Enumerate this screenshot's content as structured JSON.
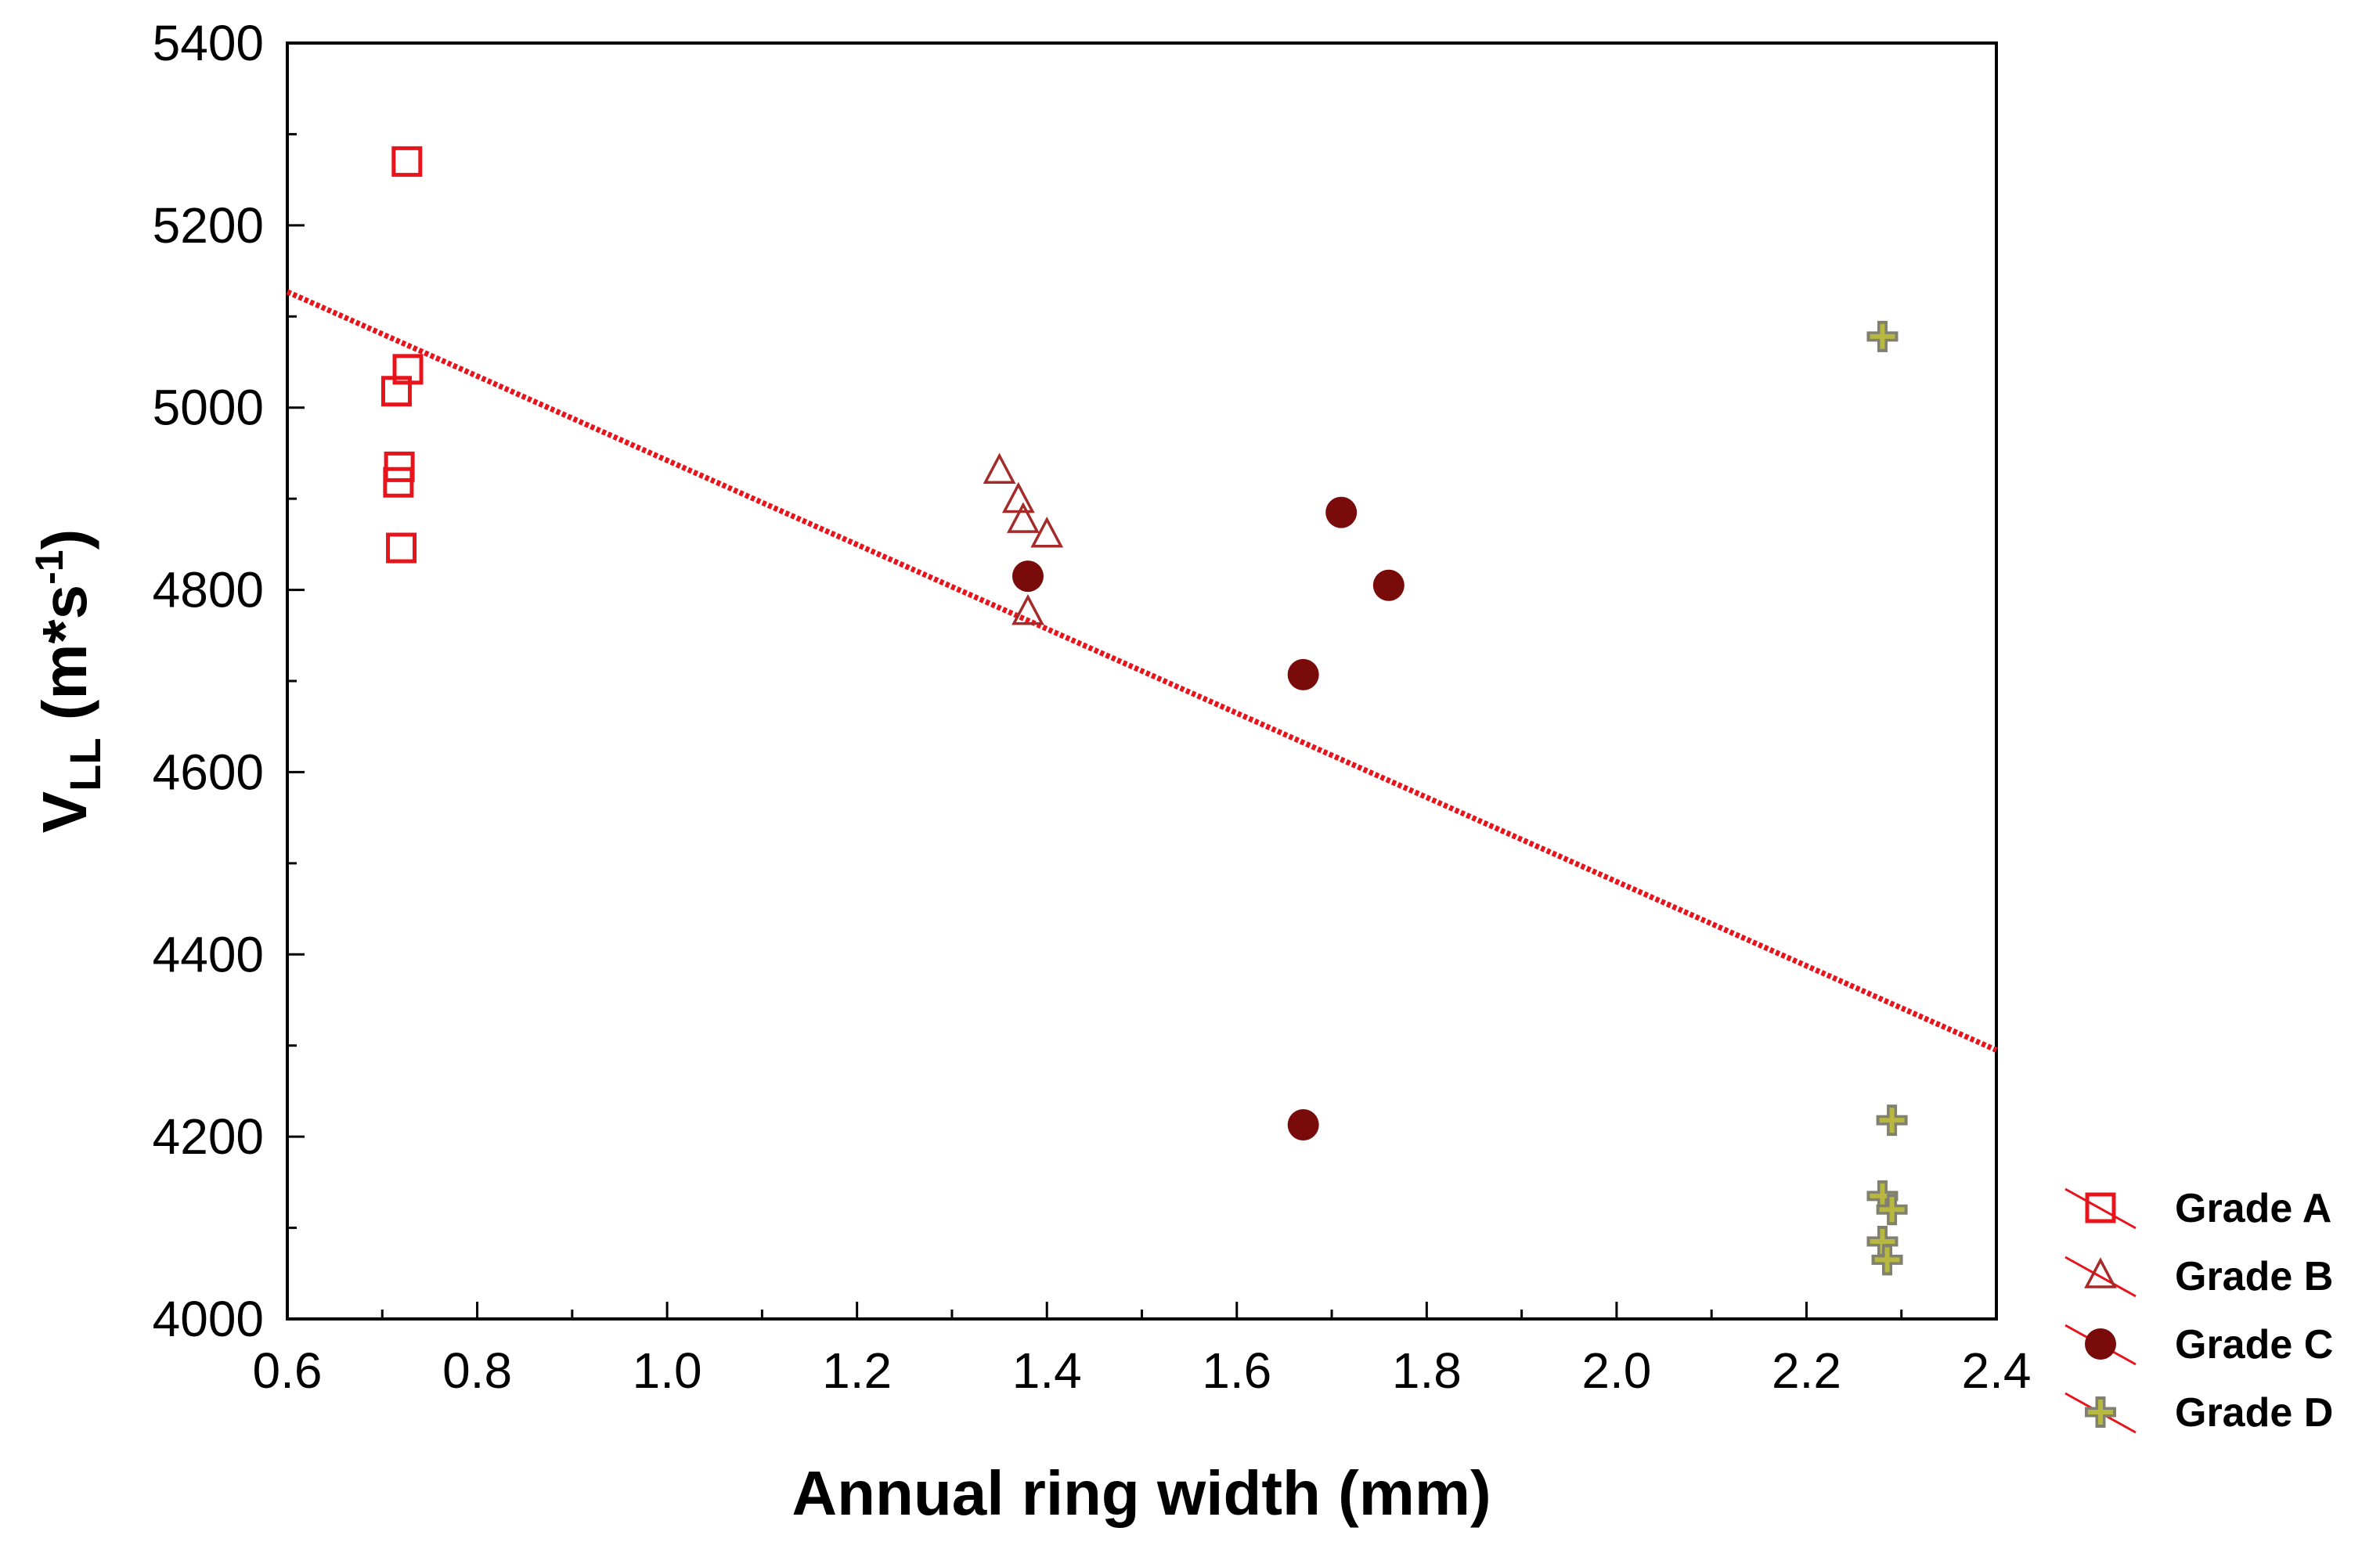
{
  "chart_data": {
    "type": "scatter",
    "title": "",
    "xlabel": "Annual ring width (mm)",
    "ylabel": {
      "base": "V",
      "subscript": "LL",
      "unit_prefix": " (m*s",
      "unit_sup": "-1",
      "unit_suffix": ")"
    },
    "xlim": [
      0.6,
      2.4
    ],
    "ylim": [
      4000,
      5400
    ],
    "xticks": [
      0.6,
      0.8,
      1.0,
      1.2,
      1.4,
      1.6,
      1.8,
      2.0,
      2.2,
      2.4
    ],
    "xtick_labels": [
      "0.6",
      "0.8",
      "1.0",
      "1.2",
      "1.4",
      "1.6",
      "1.8",
      "2.0",
      "2.2",
      "2.4"
    ],
    "yticks": [
      4000,
      4200,
      4400,
      4600,
      4800,
      5000,
      5200,
      5400
    ],
    "ytick_labels": [
      "4000",
      "4200",
      "4400",
      "4600",
      "4800",
      "5000",
      "5200",
      "5400"
    ],
    "grid": false,
    "legend_position": "right-bottom (outside)",
    "series": [
      {
        "name": "Grade A",
        "marker": "square",
        "color": "#e8141c",
        "x": [
          0.726,
          0.727,
          0.715,
          0.718,
          0.717,
          0.72
        ],
        "y": [
          5270,
          5042,
          5018,
          4935,
          4918,
          4846
        ]
      },
      {
        "name": "Grade B",
        "marker": "triangle",
        "color": "#a52a2a",
        "x": [
          1.35,
          1.37,
          1.375,
          1.4,
          1.38
        ],
        "y": [
          4930,
          4898,
          4876,
          4860,
          4775
        ]
      },
      {
        "name": "Grade C",
        "marker": "circle",
        "color": "#7a0b0b",
        "x": [
          1.38,
          1.71,
          1.76,
          1.67,
          1.67
        ],
        "y": [
          4815,
          4885,
          4805,
          4707,
          4213
        ]
      },
      {
        "name": "Grade D",
        "marker": "plus",
        "color": "#b8b840",
        "x": [
          2.28,
          2.29,
          2.28,
          2.29,
          2.28,
          2.285
        ],
        "y": [
          5078,
          4218,
          4135,
          4120,
          4085,
          4065
        ]
      }
    ],
    "trendline": {
      "x": [
        0.6,
        2.4
      ],
      "y": [
        5127,
        4295
      ],
      "color": "#e8141c",
      "style": "dotted"
    }
  }
}
